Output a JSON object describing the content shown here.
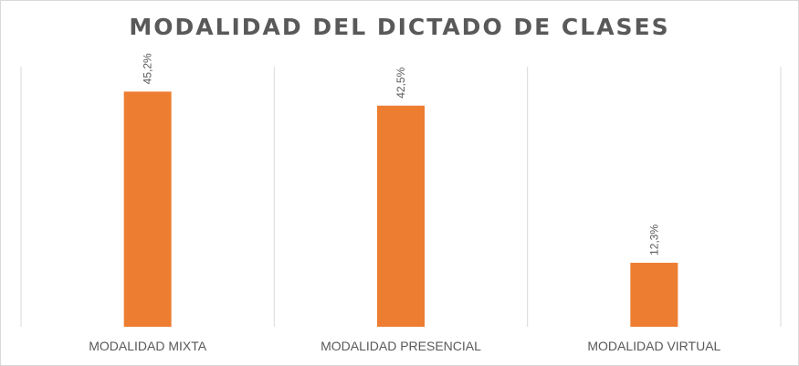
{
  "chart_data": {
    "type": "bar",
    "title": "MODALIDAD DEL DICTADO DE CLASES",
    "categories": [
      "MODALIDAD MIXTA",
      "MODALIDAD PRESENCIAL",
      "MODALIDAD VIRTUAL"
    ],
    "values": [
      45.2,
      42.5,
      12.3
    ],
    "data_labels": [
      "45,2%",
      "42,5%",
      "12,3%"
    ],
    "unit": "%",
    "ylim": [
      0,
      50
    ],
    "grid": "vertical category separators",
    "legend": "none",
    "bar_color": "#ED7D31",
    "xlabel": "",
    "ylabel": ""
  }
}
